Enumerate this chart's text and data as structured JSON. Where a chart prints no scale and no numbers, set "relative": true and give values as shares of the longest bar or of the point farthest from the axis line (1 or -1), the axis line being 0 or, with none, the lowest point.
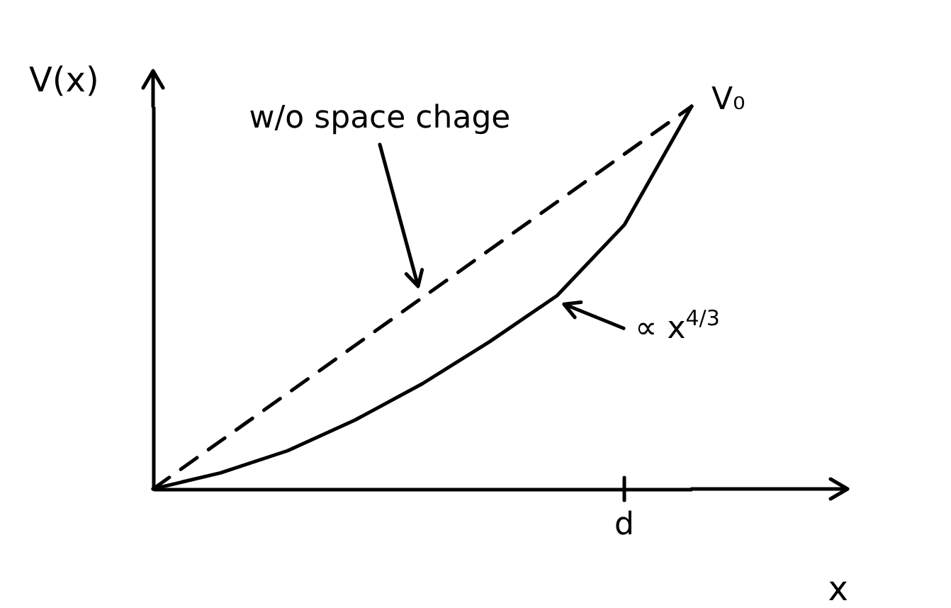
{
  "chart_data": {
    "type": "line",
    "xlabel": "x",
    "ylabel": "V(x)",
    "relative": true,
    "categories": [
      null,
      null,
      null,
      null,
      null,
      null,
      null,
      null,
      null
    ],
    "series": [
      {
        "color": "#000000",
        "line_style": "dashed",
        "values": [
          0,
          0.125,
          0.25,
          0.375,
          0.5,
          0.625,
          0.75,
          0.875,
          1
        ]
      },
      {
        "color": "#000000",
        "line_style": "solid",
        "values": [
          0,
          0.042,
          0.1,
          0.18,
          0.275,
          0.385,
          0.505,
          0.69,
          1
        ]
      }
    ],
    "annotations": [
      "w/o space chage",
      "∝ x$^{4/3}$",
      "V₀",
      "d"
    ]
  }
}
